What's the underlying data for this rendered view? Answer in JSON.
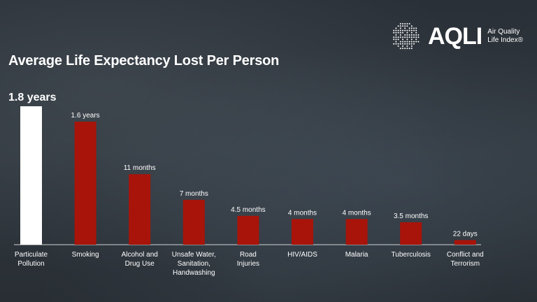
{
  "logo": {
    "name": "AQLI",
    "subtitle_line1": "Air Quality",
    "subtitle_line2": "Life Index®"
  },
  "chart_data": {
    "type": "bar",
    "title": "Average Life Expectancy Lost Per Person",
    "xlabel": "",
    "ylabel": "",
    "unit": "months",
    "ylim": [
      0,
      21.6
    ],
    "grid": false,
    "categories": [
      [
        "Particulate",
        "Pollution"
      ],
      [
        "Smoking"
      ],
      [
        "Alcohol and",
        "Drug Use"
      ],
      [
        "Unsafe Water,",
        "Sanitation,",
        "Handwashing"
      ],
      [
        "Road",
        "Injuries"
      ],
      [
        "HIV/AIDS"
      ],
      [
        "Malaria"
      ],
      [
        "Tuberculosis"
      ],
      [
        "Conflict and",
        "Terrorism"
      ]
    ],
    "values": [
      21.6,
      19.2,
      11,
      7,
      4.5,
      4,
      4,
      3.5,
      0.72
    ],
    "data_labels": [
      "1.8 years",
      "1.6 years",
      "11 months",
      "7 months",
      "4.5 months",
      "4 months",
      "4 months",
      "3.5 months",
      "22 days"
    ],
    "colors": [
      "#ffffff",
      "#a8140a",
      "#a8140a",
      "#a8140a",
      "#a8140a",
      "#a8140a",
      "#a8140a",
      "#a8140a",
      "#a8140a"
    ]
  }
}
